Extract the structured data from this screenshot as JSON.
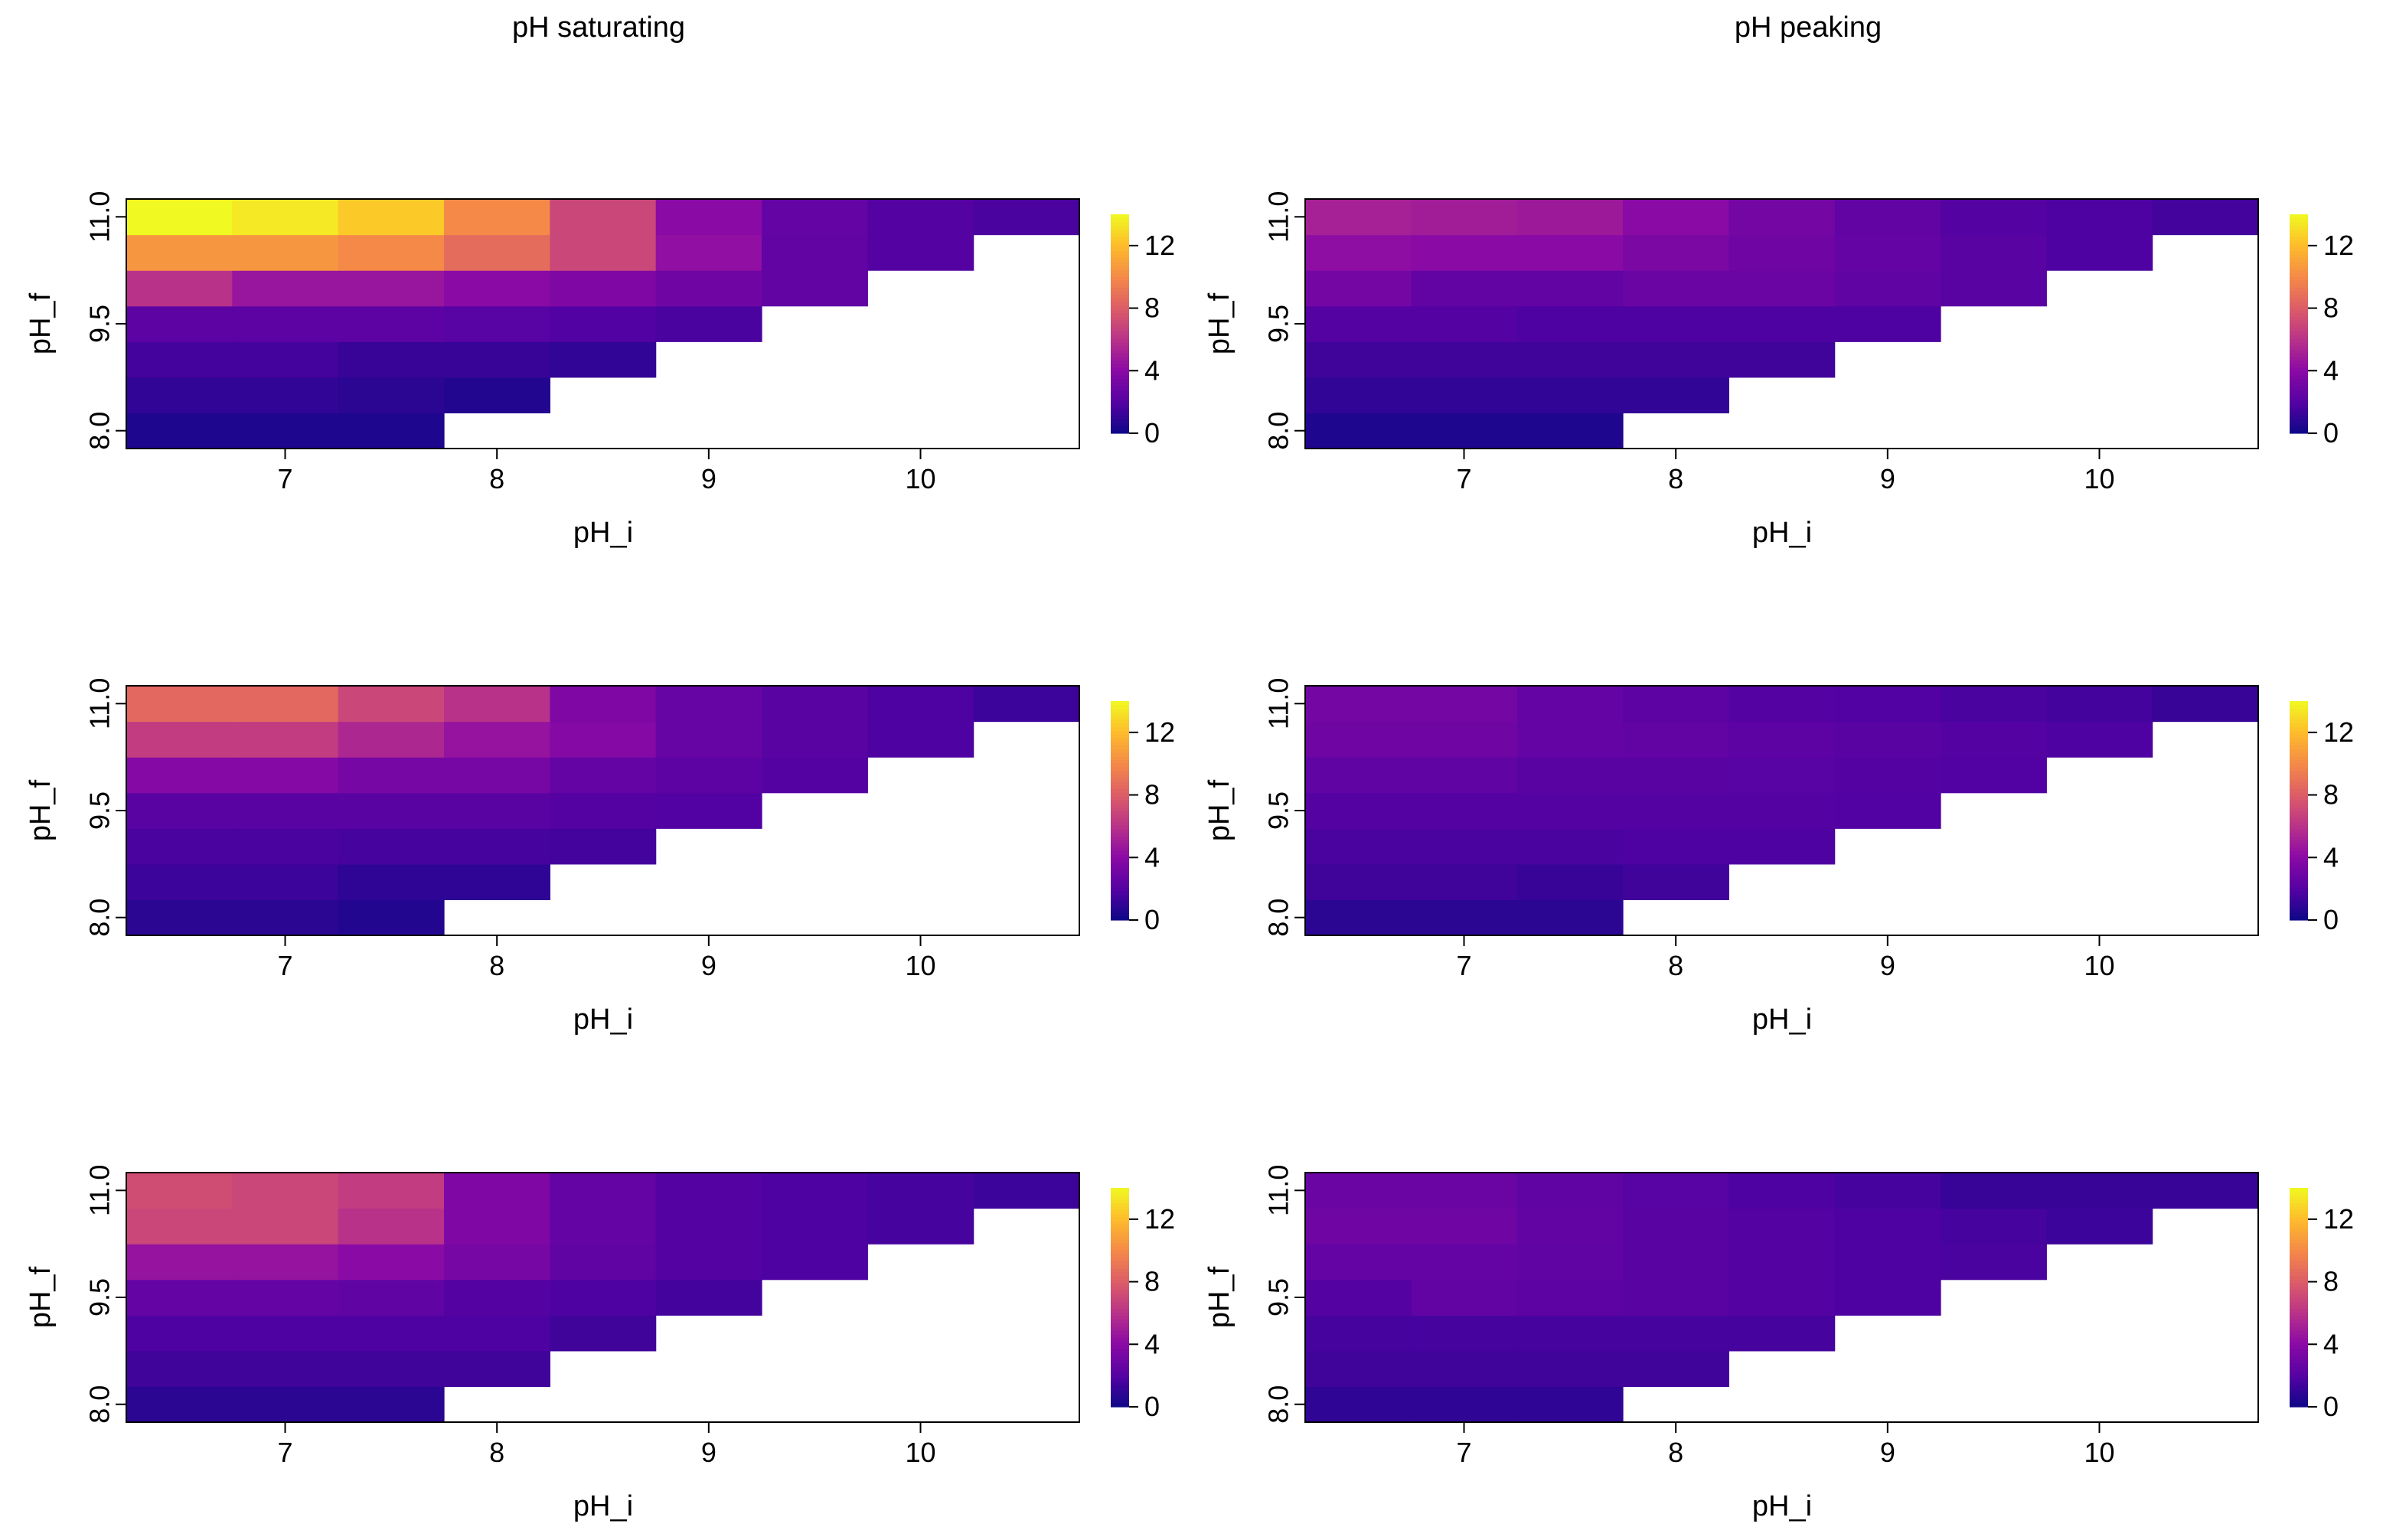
{
  "columns": [
    {
      "title": "pH saturating"
    },
    {
      "title": "pH peaking"
    }
  ],
  "chart_data": [
    {
      "type": "heatmap",
      "column": "pH saturating",
      "row": 1,
      "xlabel": "pH_i",
      "ylabel": "pH_f",
      "x_centers": [
        6.5,
        7,
        7.5,
        8,
        8.5,
        9,
        9.5,
        10,
        10.5
      ],
      "y_centers": [
        8,
        8.5,
        9,
        9.5,
        10,
        10.5,
        11
      ],
      "x_ticks": [
        "7",
        "8",
        "9",
        "10"
      ],
      "y_ticks": [
        "8.0",
        "9.5",
        "11.0"
      ],
      "colorbar": {
        "range": [
          0,
          14
        ],
        "ticks": [
          "0",
          "4",
          "8",
          "12"
        ]
      },
      "values": [
        [
          0.5,
          0.5,
          0.5,
          null,
          null,
          null,
          null,
          null,
          null
        ],
        [
          1.0,
          1.0,
          0.8,
          0.6,
          null,
          null,
          null,
          null,
          null
        ],
        [
          1.5,
          1.5,
          1.2,
          1.2,
          1.0,
          null,
          null,
          null,
          null
        ],
        [
          2.3,
          2.3,
          2.3,
          2.1,
          1.9,
          1.7,
          null,
          null,
          null
        ],
        [
          6.0,
          4.6,
          4.6,
          4.0,
          3.6,
          3.0,
          2.5,
          null,
          null
        ],
        [
          10.5,
          10.5,
          10.0,
          8.7,
          7.0,
          4.3,
          2.5,
          2.0,
          null
        ],
        [
          14.0,
          13.5,
          12.5,
          10.0,
          7.0,
          4.0,
          2.6,
          2.0,
          1.7
        ]
      ]
    },
    {
      "type": "heatmap",
      "column": "pH peaking",
      "row": 1,
      "xlabel": "pH_i",
      "ylabel": "pH_f",
      "x_centers": [
        6.5,
        7,
        7.5,
        8,
        8.5,
        9,
        9.5,
        10,
        10.5
      ],
      "y_centers": [
        8,
        8.5,
        9,
        9.5,
        10,
        10.5,
        11
      ],
      "x_ticks": [
        "7",
        "8",
        "9",
        "10"
      ],
      "y_ticks": [
        "8.0",
        "9.5",
        "11.0"
      ],
      "colorbar": {
        "range": [
          0,
          14
        ],
        "ticks": [
          "0",
          "4",
          "8",
          "12"
        ]
      },
      "values": [
        [
          0.5,
          0.5,
          0.5,
          null,
          null,
          null,
          null,
          null,
          null
        ],
        [
          1.0,
          1.0,
          1.0,
          1.0,
          null,
          null,
          null,
          null,
          null
        ],
        [
          1.4,
          1.4,
          1.4,
          1.4,
          1.4,
          null,
          null,
          null,
          null
        ],
        [
          2.0,
          2.0,
          1.8,
          1.8,
          1.8,
          1.8,
          null,
          null,
          null
        ],
        [
          3.2,
          2.5,
          2.5,
          2.8,
          2.8,
          2.4,
          2.2,
          null,
          null
        ],
        [
          4.2,
          4.0,
          4.0,
          3.5,
          3.0,
          2.6,
          2.2,
          1.8,
          null
        ],
        [
          5.2,
          5.0,
          4.8,
          4.0,
          3.2,
          2.5,
          2.0,
          1.8,
          1.5
        ]
      ]
    },
    {
      "type": "heatmap",
      "column": "pH saturating",
      "row": 2,
      "xlabel": "pH_i",
      "ylabel": "pH_f",
      "x_centers": [
        6.5,
        7,
        7.5,
        8,
        8.5,
        9,
        9.5,
        10,
        10.5
      ],
      "y_centers": [
        8,
        8.5,
        9,
        9.5,
        10,
        10.5,
        11
      ],
      "x_ticks": [
        "7",
        "8",
        "9",
        "10"
      ],
      "y_ticks": [
        "8.0",
        "9.5",
        "11.0"
      ],
      "colorbar": {
        "range": [
          0,
          14
        ],
        "ticks": [
          "0",
          "4",
          "8",
          "12"
        ]
      },
      "values": [
        [
          0.8,
          0.8,
          0.6,
          null,
          null,
          null,
          null,
          null,
          null
        ],
        [
          1.3,
          1.3,
          0.9,
          0.9,
          null,
          null,
          null,
          null,
          null
        ],
        [
          1.7,
          1.7,
          1.6,
          1.6,
          1.5,
          null,
          null,
          null,
          null
        ],
        [
          2.2,
          2.2,
          2.2,
          2.2,
          2.0,
          1.9,
          null,
          null,
          null
        ],
        [
          3.8,
          3.8,
          3.3,
          3.3,
          2.6,
          2.3,
          2.0,
          null,
          null
        ],
        [
          6.5,
          6.5,
          5.5,
          4.5,
          3.8,
          2.7,
          2.2,
          1.8,
          null
        ],
        [
          8.5,
          8.5,
          7.0,
          6.0,
          3.6,
          2.7,
          2.2,
          1.8,
          1.3
        ]
      ]
    },
    {
      "type": "heatmap",
      "column": "pH peaking",
      "row": 2,
      "xlabel": "pH_i",
      "ylabel": "pH_f",
      "x_centers": [
        6.5,
        7,
        7.5,
        8,
        8.5,
        9,
        9.5,
        10,
        10.5
      ],
      "y_centers": [
        8,
        8.5,
        9,
        9.5,
        10,
        10.5,
        11
      ],
      "x_ticks": [
        "7",
        "8",
        "9",
        "10"
      ],
      "y_ticks": [
        "8.0",
        "9.5",
        "11.0"
      ],
      "colorbar": {
        "range": [
          0,
          14
        ],
        "ticks": [
          "0",
          "4",
          "8",
          "12"
        ]
      },
      "values": [
        [
          0.8,
          0.8,
          0.8,
          null,
          null,
          null,
          null,
          null,
          null
        ],
        [
          1.4,
          1.4,
          1.2,
          1.4,
          null,
          null,
          null,
          null,
          null
        ],
        [
          1.7,
          1.7,
          1.7,
          1.8,
          1.8,
          null,
          null,
          null,
          null
        ],
        [
          2.0,
          2.0,
          2.0,
          2.0,
          2.0,
          1.9,
          null,
          null,
          null
        ],
        [
          2.4,
          2.4,
          2.2,
          2.2,
          2.1,
          2.0,
          1.9,
          null,
          null
        ],
        [
          3.0,
          3.0,
          2.6,
          2.5,
          2.3,
          2.2,
          2.0,
          1.8,
          null
        ],
        [
          3.2,
          3.2,
          2.6,
          2.3,
          2.0,
          1.9,
          1.7,
          1.5,
          1.2
        ]
      ]
    },
    {
      "type": "heatmap",
      "column": "pH saturating",
      "row": 3,
      "xlabel": "pH_i",
      "ylabel": "pH_f",
      "x_centers": [
        6.5,
        7,
        7.5,
        8,
        8.5,
        9,
        9.5,
        10,
        10.5
      ],
      "y_centers": [
        8,
        8.5,
        9,
        9.5,
        10,
        10.5,
        11
      ],
      "x_ticks": [
        "7",
        "8",
        "9",
        "10"
      ],
      "y_ticks": [
        "8.0",
        "9.5",
        "11.0"
      ],
      "colorbar": {
        "range": [
          0,
          14
        ],
        "ticks": [
          "0",
          "4",
          "8",
          "12"
        ]
      },
      "values": [
        [
          0.8,
          0.8,
          0.8,
          null,
          null,
          null,
          null,
          null,
          null
        ],
        [
          1.4,
          1.4,
          1.4,
          1.4,
          null,
          null,
          null,
          null,
          null
        ],
        [
          1.8,
          1.8,
          1.8,
          1.8,
          1.4,
          null,
          null,
          null,
          null
        ],
        [
          2.6,
          2.6,
          2.4,
          2.0,
          1.8,
          1.5,
          null,
          null,
          null
        ],
        [
          4.5,
          4.5,
          4.0,
          3.3,
          2.4,
          2.0,
          1.8,
          null,
          null
        ],
        [
          7.0,
          7.0,
          6.0,
          3.6,
          2.6,
          2.0,
          1.8,
          1.6,
          null
        ],
        [
          7.3,
          7.0,
          6.5,
          3.6,
          2.6,
          2.0,
          1.8,
          1.6,
          1.3
        ]
      ]
    },
    {
      "type": "heatmap",
      "column": "pH peaking",
      "row": 3,
      "xlabel": "pH_i",
      "ylabel": "pH_f",
      "x_centers": [
        6.5,
        7,
        7.5,
        8,
        8.5,
        9,
        9.5,
        10,
        10.5
      ],
      "y_centers": [
        8,
        8.5,
        9,
        9.5,
        10,
        10.5,
        11
      ],
      "x_ticks": [
        "7",
        "8",
        "9",
        "10"
      ],
      "y_ticks": [
        "8.0",
        "9.5",
        "11.0"
      ],
      "colorbar": {
        "range": [
          0,
          14
        ],
        "ticks": [
          "0",
          "4",
          "8",
          "12"
        ]
      },
      "values": [
        [
          0.9,
          0.9,
          0.9,
          null,
          null,
          null,
          null,
          null,
          null
        ],
        [
          1.4,
          1.4,
          1.4,
          1.4,
          null,
          null,
          null,
          null,
          null
        ],
        [
          1.6,
          1.6,
          1.6,
          1.6,
          1.6,
          null,
          null,
          null,
          null
        ],
        [
          2.0,
          2.5,
          2.3,
          2.2,
          2.0,
          1.8,
          null,
          null,
          null
        ],
        [
          2.6,
          2.6,
          2.4,
          2.2,
          2.0,
          1.8,
          1.7,
          null,
          null
        ],
        [
          3.0,
          3.0,
          2.5,
          2.2,
          2.0,
          1.8,
          1.6,
          1.3,
          null
        ],
        [
          2.8,
          2.8,
          2.4,
          2.1,
          1.8,
          1.6,
          1.2,
          1.2,
          1.2
        ]
      ]
    }
  ]
}
